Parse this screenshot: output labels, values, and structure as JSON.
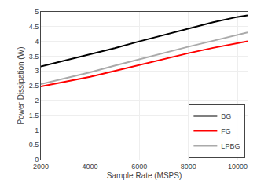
{
  "chart_data": {
    "type": "line",
    "xlabel": "Sample Rate (MSPS)",
    "ylabel": "Power Dissipation (W)",
    "x": [
      2000,
      3000,
      4000,
      5000,
      6000,
      7000,
      8000,
      9000,
      10000,
      10400
    ],
    "series": [
      {
        "name": "BG",
        "color": "#000000",
        "values": [
          3.15,
          3.35,
          3.55,
          3.77,
          4.0,
          4.22,
          4.45,
          4.65,
          4.83,
          4.88
        ]
      },
      {
        "name": "FG",
        "color": "#ff0000",
        "values": [
          2.47,
          2.63,
          2.8,
          3.0,
          3.2,
          3.42,
          3.6,
          3.78,
          3.95,
          4.0
        ]
      },
      {
        "name": "LPBG",
        "color": "#aaaaaa",
        "values": [
          2.55,
          2.75,
          2.95,
          3.18,
          3.4,
          3.6,
          3.82,
          4.02,
          4.22,
          4.3
        ]
      }
    ],
    "xlim": [
      2000,
      10400
    ],
    "ylim": [
      0,
      5
    ],
    "xticks": [
      2000,
      4000,
      6000,
      8000,
      10000
    ],
    "yticks": [
      0,
      0.5,
      1,
      1.5,
      2,
      2.5,
      3,
      3.5,
      4,
      4.5,
      5
    ],
    "grid": true,
    "legend": "lower right"
  }
}
